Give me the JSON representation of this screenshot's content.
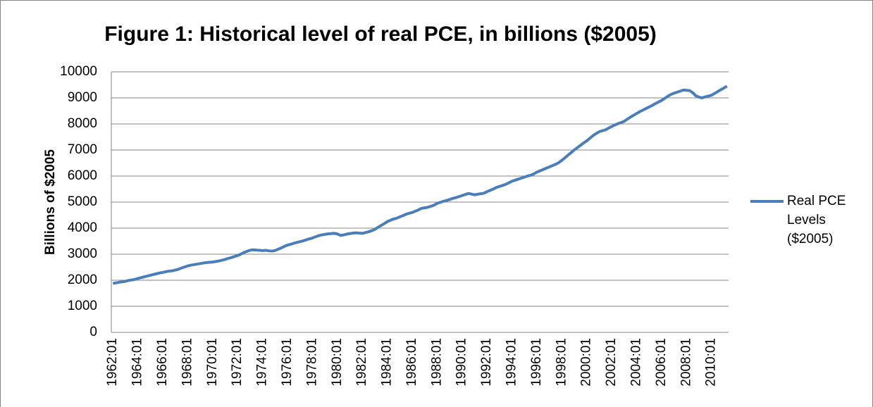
{
  "chart_data": {
    "type": "line",
    "title": "Figure 1: Historical level of real PCE, in billions ($2005)",
    "y_label": "Billions of $2005",
    "categories": [
      "1962:01",
      null,
      null,
      null,
      null,
      null,
      null,
      null,
      "1964:01",
      null,
      null,
      null,
      null,
      null,
      null,
      null,
      "1966:01",
      null,
      null,
      null,
      null,
      null,
      null,
      null,
      "1968:01",
      null,
      null,
      null,
      null,
      null,
      null,
      null,
      "1970:01",
      null,
      null,
      null,
      null,
      null,
      null,
      null,
      "1972:01",
      null,
      null,
      null,
      null,
      null,
      null,
      null,
      "1974:01",
      null,
      null,
      null,
      null,
      null,
      null,
      null,
      "1976:01",
      null,
      null,
      null,
      null,
      null,
      null,
      null,
      "1978:01",
      null,
      null,
      null,
      null,
      null,
      null,
      null,
      "1980:01",
      null,
      null,
      null,
      null,
      null,
      null,
      null,
      "1982:01",
      null,
      null,
      null,
      null,
      null,
      null,
      null,
      "1984:01",
      null,
      null,
      null,
      null,
      null,
      null,
      null,
      "1986:01",
      null,
      null,
      null,
      null,
      null,
      null,
      null,
      "1988:01",
      null,
      null,
      null,
      null,
      null,
      null,
      null,
      "1990:01",
      null,
      null,
      null,
      null,
      null,
      null,
      null,
      "1992:01",
      null,
      null,
      null,
      null,
      null,
      null,
      null,
      "1994:01",
      null,
      null,
      null,
      null,
      null,
      null,
      null,
      "1996:01",
      null,
      null,
      null,
      null,
      null,
      null,
      null,
      "1998:01",
      null,
      null,
      null,
      null,
      null,
      null,
      null,
      "2000:01",
      null,
      null,
      null,
      null,
      null,
      null,
      null,
      "2002:01",
      null,
      null,
      null,
      null,
      null,
      null,
      null,
      "2004:01",
      null,
      null,
      null,
      null,
      null,
      null,
      null,
      "2006:01",
      null,
      null,
      null,
      null,
      null,
      null,
      null,
      "2008:01",
      null,
      null,
      null,
      null,
      null,
      null,
      null,
      "2010:01",
      null,
      null,
      null,
      null,
      null
    ],
    "series": [
      {
        "name": "Real PCE Levels ($2005)",
        "color": "#4a7ebb",
        "values": [
          1880,
          1900,
          1920,
          1940,
          1960,
          1990,
          2010,
          2030,
          2070,
          2100,
          2130,
          2160,
          2190,
          2220,
          2250,
          2280,
          2300,
          2330,
          2350,
          2360,
          2390,
          2420,
          2470,
          2510,
          2550,
          2580,
          2600,
          2620,
          2640,
          2660,
          2680,
          2690,
          2700,
          2720,
          2740,
          2770,
          2800,
          2840,
          2870,
          2910,
          2950,
          3000,
          3060,
          3110,
          3150,
          3170,
          3160,
          3150,
          3140,
          3150,
          3130,
          3120,
          3140,
          3190,
          3240,
          3300,
          3350,
          3380,
          3420,
          3450,
          3480,
          3510,
          3550,
          3590,
          3620,
          3670,
          3710,
          3740,
          3760,
          3780,
          3790,
          3800,
          3780,
          3720,
          3740,
          3770,
          3790,
          3810,
          3820,
          3810,
          3800,
          3830,
          3860,
          3900,
          3950,
          4030,
          4100,
          4170,
          4250,
          4300,
          4350,
          4380,
          4430,
          4480,
          4530,
          4570,
          4600,
          4650,
          4700,
          4760,
          4780,
          4800,
          4840,
          4880,
          4950,
          4990,
          5030,
          5060,
          5100,
          5140,
          5170,
          5210,
          5250,
          5290,
          5330,
          5310,
          5280,
          5300,
          5320,
          5340,
          5400,
          5450,
          5500,
          5560,
          5600,
          5640,
          5680,
          5740,
          5800,
          5840,
          5880,
          5920,
          5960,
          6000,
          6030,
          6080,
          6150,
          6200,
          6250,
          6300,
          6350,
          6400,
          6450,
          6510,
          6600,
          6700,
          6800,
          6900,
          7000,
          7090,
          7180,
          7270,
          7350,
          7450,
          7550,
          7630,
          7700,
          7740,
          7770,
          7840,
          7900,
          7960,
          8010,
          8050,
          8100,
          8180,
          8260,
          8330,
          8400,
          8470,
          8530,
          8590,
          8650,
          8710,
          8780,
          8840,
          8900,
          8980,
          9060,
          9130,
          9180,
          9220,
          9260,
          9300,
          9290,
          9280,
          9200,
          9080,
          9030,
          9000,
          9040,
          9070,
          9100,
          9170,
          9240,
          9310,
          9380,
          9450
        ]
      }
    ],
    "ylim": [
      0,
      10000
    ],
    "yticks": [
      0,
      1000,
      2000,
      3000,
      4000,
      5000,
      6000,
      7000,
      8000,
      9000,
      10000
    ],
    "grid": true,
    "legend": "right"
  }
}
